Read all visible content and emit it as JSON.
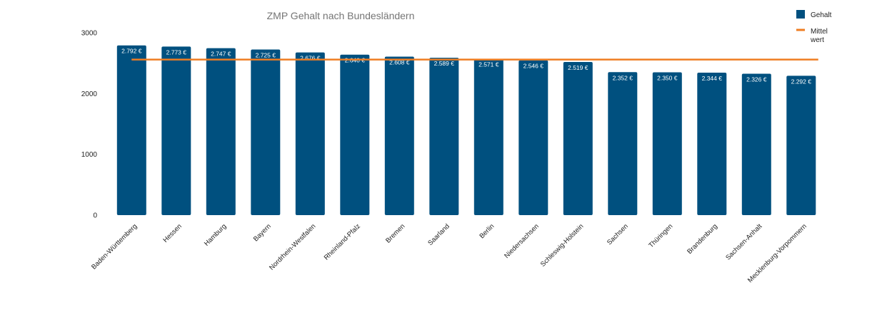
{
  "chart_data": {
    "type": "bar",
    "title": "ZMP Gehalt nach Bundesländern",
    "xlabel": "",
    "ylabel": "",
    "ylim": [
      0,
      3000
    ],
    "yticks": [
      0,
      1000,
      2000,
      3000
    ],
    "grid": false,
    "legend_position": "top-right",
    "categories": [
      "Baden-Württemberg",
      "Hessen",
      "Hamburg",
      "Bayern",
      "Nordrhein-Westfalen",
      "Rheinland-Pfalz",
      "Bremen",
      "Saarland",
      "Berlin",
      "Niedersachsen",
      "Schleswig-Holstein",
      "Sachsen",
      "Thüringen",
      "Brandenburg",
      "Sachsen-Anhalt",
      "Mecklenburg-Vorpommern"
    ],
    "series": [
      {
        "name": "Gehalt",
        "type": "bar",
        "color": "#00507f",
        "values": [
          2792,
          2773,
          2747,
          2725,
          2676,
          2640,
          2608,
          2589,
          2571,
          2546,
          2519,
          2352,
          2350,
          2344,
          2326,
          2292
        ],
        "labels": [
          "2.792 €",
          "2.773 €",
          "2.747 €",
          "2.725 €",
          "2.676 €",
          "2.640 €",
          "2.608 €",
          "2.589 €",
          "2.571 €",
          "2.546 €",
          "2.519 €",
          "2.352 €",
          "2.350 €",
          "2.344 €",
          "2.326 €",
          "2.292 €"
        ]
      },
      {
        "name": "Mittelwert",
        "legend_lines": [
          "Mittel",
          "wert"
        ],
        "type": "line",
        "color": "#ef7d22",
        "values": [
          2559,
          2559,
          2559,
          2559,
          2559,
          2559,
          2559,
          2559,
          2559,
          2559,
          2559,
          2559,
          2559,
          2559,
          2559,
          2559
        ]
      }
    ]
  }
}
